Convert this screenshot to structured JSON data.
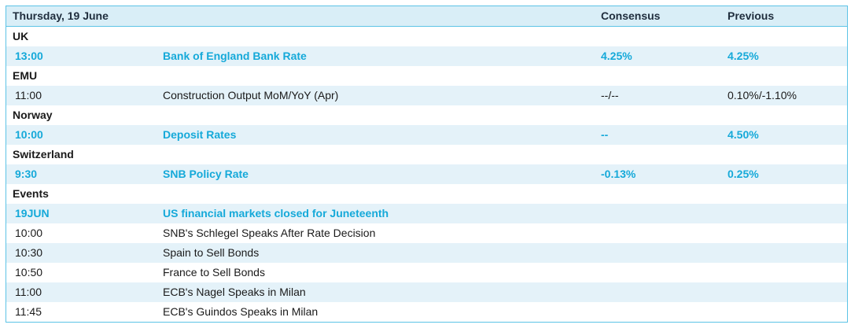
{
  "header": {
    "date": "Thursday, 19 June",
    "consensus_label": "Consensus",
    "previous_label": "Previous"
  },
  "sections": [
    {
      "region": "UK",
      "rows": [
        {
          "time": "13:00",
          "event": "Bank of England Bank Rate",
          "consensus": "4.25%",
          "previous": "4.25%",
          "highlight": true
        }
      ]
    },
    {
      "region": "EMU",
      "rows": [
        {
          "time": "11:00",
          "event": "Construction Output MoM/YoY (Apr)",
          "consensus": "--/--",
          "previous": "0.10%/-1.10%",
          "highlight": false
        }
      ]
    },
    {
      "region": "Norway",
      "rows": [
        {
          "time": "10:00",
          "event": "Deposit Rates",
          "consensus": "--",
          "previous": "4.50%",
          "highlight": true
        }
      ]
    },
    {
      "region": "Switzerland",
      "rows": [
        {
          "time": "9:30",
          "event": "SNB Policy Rate",
          "consensus": "-0.13%",
          "previous": "0.25%",
          "highlight": true
        }
      ]
    },
    {
      "region": "Events",
      "rows": [
        {
          "time": "19JUN",
          "event": "US financial markets closed for Juneteenth",
          "consensus": "",
          "previous": "",
          "highlight": true
        },
        {
          "time": "10:00",
          "event": "SNB's Schlegel Speaks After Rate Decision",
          "consensus": "",
          "previous": "",
          "highlight": false
        },
        {
          "time": "10:30",
          "event": "Spain to Sell Bonds",
          "consensus": "",
          "previous": "",
          "highlight": false
        },
        {
          "time": "10:50",
          "event": "France to Sell Bonds",
          "consensus": "",
          "previous": "",
          "highlight": false
        },
        {
          "time": "11:00",
          "event": "ECB's Nagel Speaks in Milan",
          "consensus": "",
          "previous": "",
          "highlight": false
        },
        {
          "time": "11:45",
          "event": "ECB's Guindos Speaks in Milan",
          "consensus": "",
          "previous": "",
          "highlight": false
        }
      ]
    }
  ],
  "colors": {
    "accent": "#15a9d9",
    "border": "#5cc3e6",
    "header_bg": "#d9eef7",
    "stripe_bg": "#e4f2f9"
  }
}
